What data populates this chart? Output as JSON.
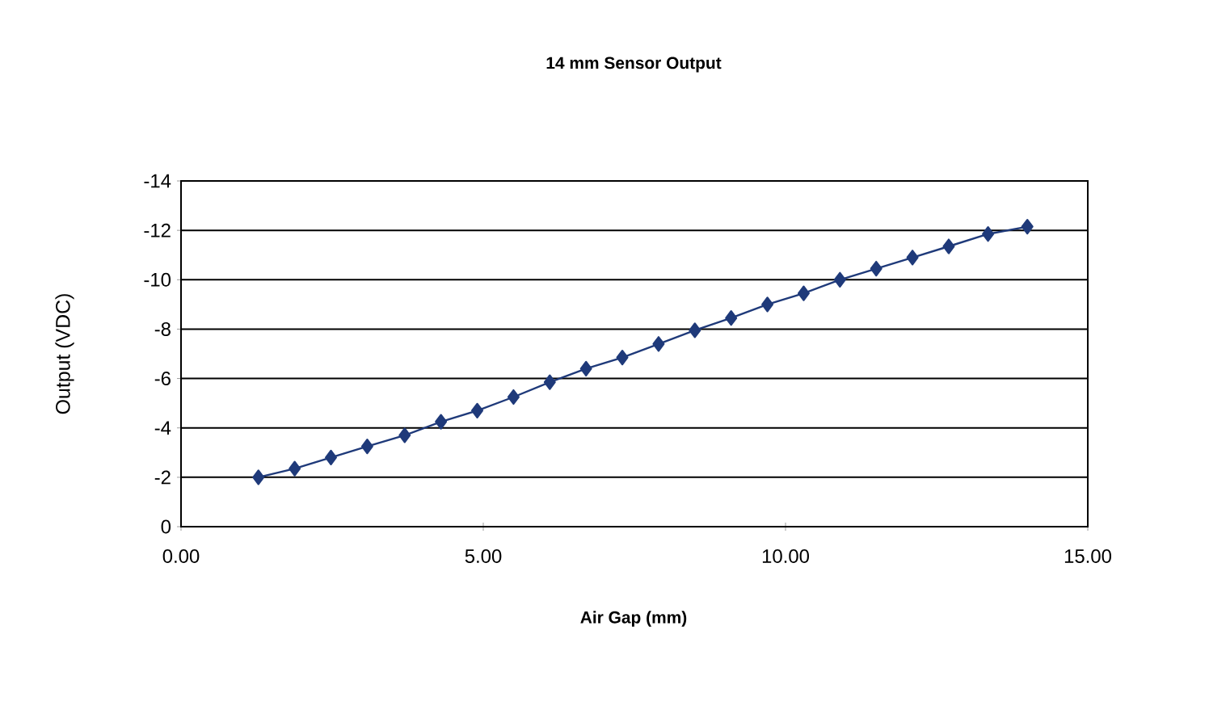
{
  "chart_data": {
    "type": "line",
    "title": "14 mm Sensor Output",
    "xlabel": "Air Gap (mm)",
    "ylabel": "Output (VDC)",
    "x": [
      1.28,
      1.88,
      2.48,
      3.08,
      3.7,
      4.3,
      4.9,
      5.5,
      6.1,
      6.7,
      7.3,
      7.9,
      8.5,
      9.1,
      9.7,
      10.3,
      10.9,
      11.5,
      12.1,
      12.7,
      13.35,
      14.0
    ],
    "series": [
      {
        "color": "#1f3a7a",
        "values": [
          -2.0,
          -2.35,
          -2.8,
          -3.25,
          -3.7,
          -4.25,
          -4.7,
          -5.25,
          -5.85,
          -6.4,
          -6.85,
          -7.4,
          -7.95,
          -8.45,
          -9.0,
          -9.45,
          -10.0,
          -10.45,
          -10.9,
          -11.35,
          -11.85,
          -12.15
        ]
      }
    ],
    "xlim": [
      0,
      15
    ],
    "xticks": [
      {
        "value": 0,
        "label": "0.00"
      },
      {
        "value": 5,
        "label": "5.00"
      },
      {
        "value": 10,
        "label": "10.00"
      },
      {
        "value": 15,
        "label": "15.00"
      }
    ],
    "ylim": [
      0,
      -14
    ],
    "yticks": [
      0,
      -2,
      -4,
      -6,
      -8,
      -10,
      -12,
      -14
    ],
    "grid": "y",
    "marker": "diamond",
    "line_style": "solid"
  }
}
